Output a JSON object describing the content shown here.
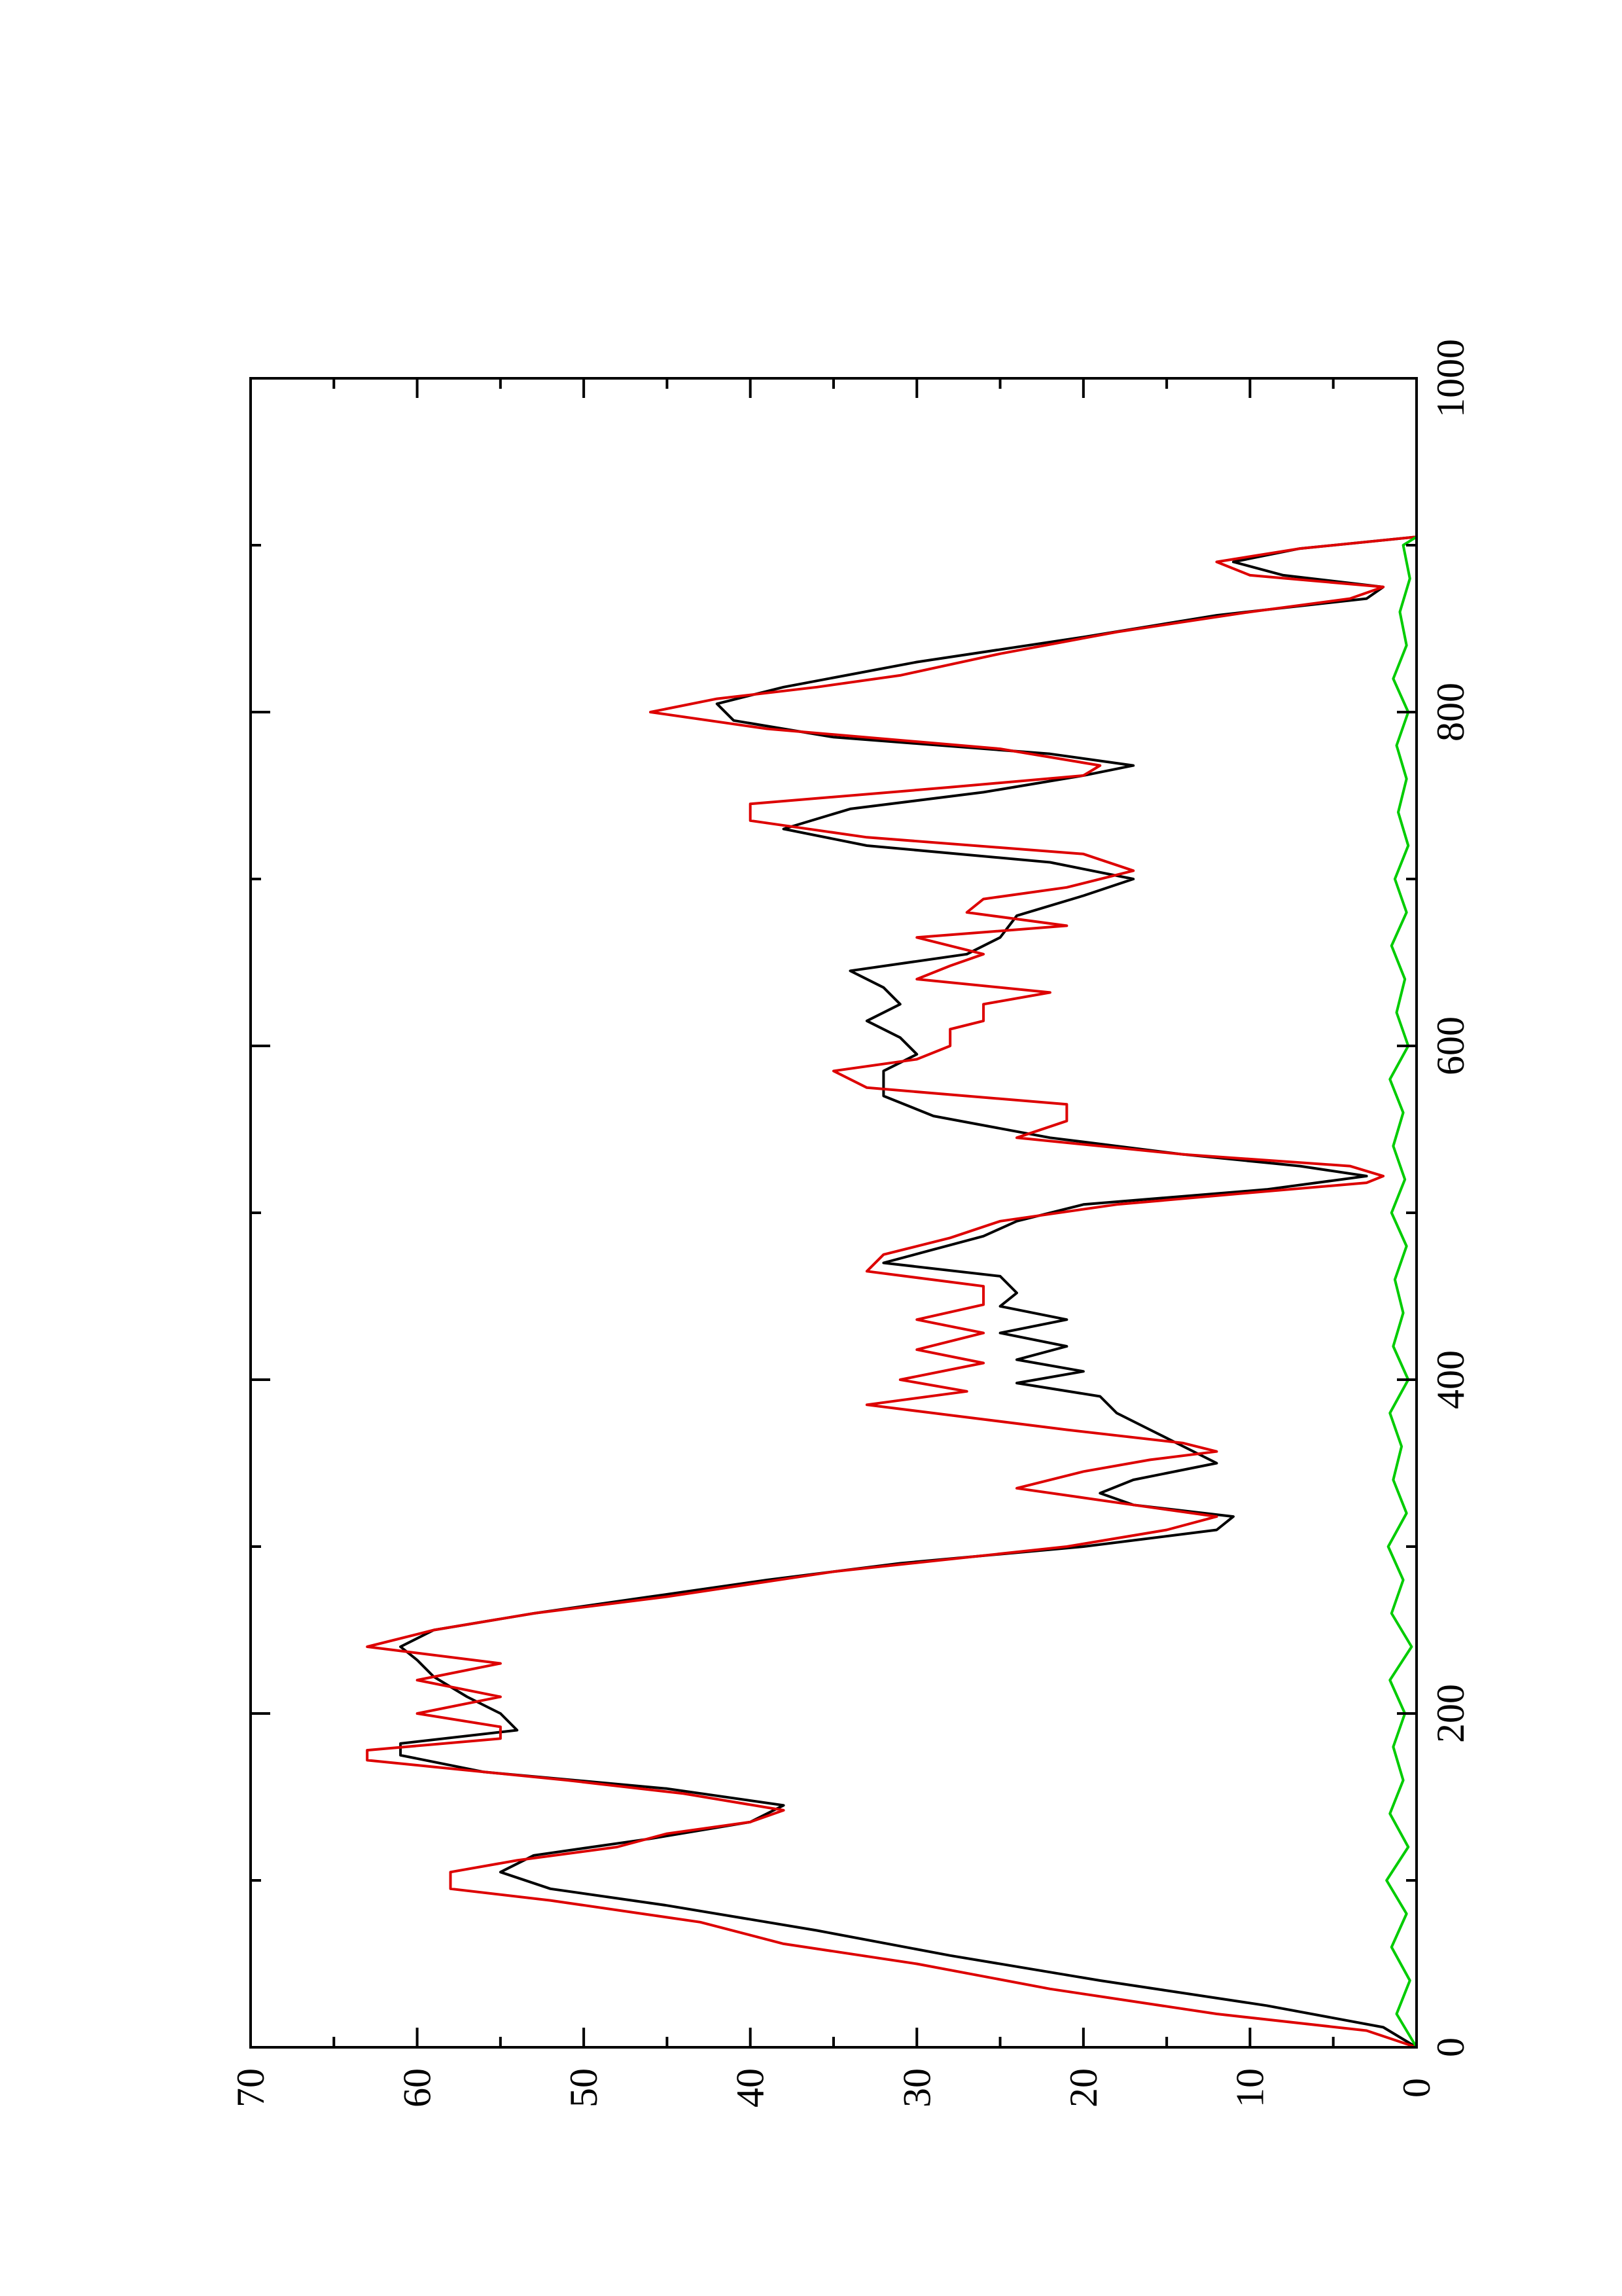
{
  "chart_data": {
    "type": "line",
    "orientation": "rotated-90",
    "title": "",
    "xlabel": "",
    "ylabel": "",
    "xlim": [
      0,
      1000
    ],
    "ylim": [
      0,
      70
    ],
    "x_ticks": [
      0,
      200,
      400,
      600,
      800,
      1000
    ],
    "y_ticks": [
      0,
      10,
      20,
      30,
      40,
      50,
      60,
      70
    ],
    "grid": false,
    "legend": "none",
    "series": [
      {
        "color": "#000000",
        "points": [
          [
            0,
            0
          ],
          [
            12,
            2
          ],
          [
            25,
            9
          ],
          [
            40,
            19
          ],
          [
            55,
            28
          ],
          [
            70,
            36
          ],
          [
            85,
            45
          ],
          [
            95,
            52
          ],
          [
            105,
            55
          ],
          [
            115,
            53
          ],
          [
            125,
            46
          ],
          [
            135,
            40
          ],
          [
            145,
            38
          ],
          [
            155,
            45
          ],
          [
            165,
            56
          ],
          [
            175,
            61
          ],
          [
            182,
            61
          ],
          [
            190,
            54
          ],
          [
            200,
            55
          ],
          [
            210,
            57
          ],
          [
            222,
            59
          ],
          [
            232,
            60
          ],
          [
            240,
            61
          ],
          [
            250,
            59
          ],
          [
            260,
            53
          ],
          [
            270,
            46
          ],
          [
            280,
            39
          ],
          [
            290,
            31
          ],
          [
            300,
            20
          ],
          [
            310,
            12
          ],
          [
            318,
            11
          ],
          [
            325,
            17
          ],
          [
            332,
            19
          ],
          [
            340,
            17
          ],
          [
            350,
            12
          ],
          [
            360,
            14
          ],
          [
            370,
            16
          ],
          [
            380,
            18
          ],
          [
            390,
            19
          ],
          [
            398,
            24
          ],
          [
            405,
            20
          ],
          [
            412,
            24
          ],
          [
            420,
            21
          ],
          [
            428,
            25
          ],
          [
            436,
            21
          ],
          [
            444,
            25
          ],
          [
            452,
            24
          ],
          [
            462,
            25
          ],
          [
            470,
            32
          ],
          [
            478,
            29
          ],
          [
            486,
            26
          ],
          [
            495,
            24
          ],
          [
            505,
            20
          ],
          [
            514,
            9
          ],
          [
            522,
            3
          ],
          [
            528,
            7
          ],
          [
            535,
            14
          ],
          [
            545,
            22
          ],
          [
            558,
            29
          ],
          [
            570,
            32
          ],
          [
            585,
            32
          ],
          [
            595,
            30
          ],
          [
            605,
            31
          ],
          [
            615,
            33
          ],
          [
            625,
            31
          ],
          [
            635,
            32
          ],
          [
            645,
            34
          ],
          [
            655,
            27
          ],
          [
            665,
            25
          ],
          [
            678,
            24
          ],
          [
            690,
            20
          ],
          [
            700,
            17
          ],
          [
            710,
            22
          ],
          [
            720,
            33
          ],
          [
            730,
            38
          ],
          [
            742,
            34
          ],
          [
            752,
            26
          ],
          [
            762,
            20
          ],
          [
            768,
            17
          ],
          [
            775,
            22
          ],
          [
            785,
            35
          ],
          [
            795,
            41
          ],
          [
            805,
            42
          ],
          [
            815,
            38
          ],
          [
            830,
            30
          ],
          [
            845,
            20
          ],
          [
            858,
            12
          ],
          [
            868,
            3
          ],
          [
            875,
            2
          ],
          [
            882,
            8
          ],
          [
            890,
            11
          ],
          [
            898,
            7
          ],
          [
            905,
            0
          ]
        ]
      },
      {
        "color": "#dd0000",
        "points": [
          [
            0,
            0
          ],
          [
            10,
            3
          ],
          [
            20,
            12
          ],
          [
            35,
            22
          ],
          [
            50,
            30
          ],
          [
            62,
            38
          ],
          [
            75,
            43
          ],
          [
            88,
            52
          ],
          [
            95,
            58
          ],
          [
            105,
            58
          ],
          [
            112,
            54
          ],
          [
            120,
            48
          ],
          [
            128,
            45
          ],
          [
            135,
            40
          ],
          [
            142,
            38
          ],
          [
            152,
            44
          ],
          [
            160,
            51
          ],
          [
            168,
            59
          ],
          [
            172,
            63
          ],
          [
            178,
            63
          ],
          [
            185,
            55
          ],
          [
            192,
            55
          ],
          [
            200,
            60
          ],
          [
            210,
            55
          ],
          [
            220,
            60
          ],
          [
            230,
            55
          ],
          [
            240,
            63
          ],
          [
            250,
            59
          ],
          [
            260,
            53
          ],
          [
            270,
            45
          ],
          [
            285,
            35
          ],
          [
            300,
            21
          ],
          [
            310,
            15
          ],
          [
            318,
            12
          ],
          [
            325,
            17
          ],
          [
            335,
            24
          ],
          [
            345,
            20
          ],
          [
            352,
            16
          ],
          [
            357,
            12
          ],
          [
            362,
            14
          ],
          [
            370,
            21
          ],
          [
            385,
            33
          ],
          [
            393,
            27
          ],
          [
            400,
            31
          ],
          [
            410,
            26
          ],
          [
            418,
            30
          ],
          [
            428,
            26
          ],
          [
            436,
            30
          ],
          [
            445,
            26
          ],
          [
            456,
            26
          ],
          [
            465,
            33
          ],
          [
            475,
            32
          ],
          [
            485,
            28
          ],
          [
            495,
            25
          ],
          [
            505,
            18
          ],
          [
            512,
            10
          ],
          [
            518,
            3
          ],
          [
            522,
            2
          ],
          [
            528,
            4
          ],
          [
            535,
            14
          ],
          [
            545,
            24
          ],
          [
            555,
            21
          ],
          [
            565,
            21
          ],
          [
            575,
            33
          ],
          [
            585,
            35
          ],
          [
            592,
            30
          ],
          [
            600,
            28
          ],
          [
            610,
            28
          ],
          [
            615,
            26
          ],
          [
            625,
            26
          ],
          [
            632,
            22
          ],
          [
            640,
            30
          ],
          [
            648,
            28
          ],
          [
            655,
            26
          ],
          [
            665,
            30
          ],
          [
            672,
            21
          ],
          [
            680,
            27
          ],
          [
            688,
            26
          ],
          [
            695,
            21
          ],
          [
            705,
            17
          ],
          [
            715,
            20
          ],
          [
            725,
            33
          ],
          [
            735,
            40
          ],
          [
            745,
            40
          ],
          [
            755,
            28
          ],
          [
            762,
            20
          ],
          [
            768,
            19
          ],
          [
            778,
            25
          ],
          [
            790,
            39
          ],
          [
            800,
            46
          ],
          [
            808,
            42
          ],
          [
            815,
            36
          ],
          [
            822,
            31
          ],
          [
            835,
            25
          ],
          [
            848,
            18
          ],
          [
            860,
            10
          ],
          [
            868,
            4
          ],
          [
            875,
            2
          ],
          [
            882,
            10
          ],
          [
            890,
            12
          ],
          [
            898,
            7
          ],
          [
            905,
            0
          ]
        ]
      },
      {
        "color": "#00cc00",
        "points": [
          [
            0,
            0
          ],
          [
            20,
            1.2
          ],
          [
            40,
            0.4
          ],
          [
            60,
            1.5
          ],
          [
            80,
            0.6
          ],
          [
            100,
            1.8
          ],
          [
            120,
            0.5
          ],
          [
            140,
            1.6
          ],
          [
            160,
            0.8
          ],
          [
            180,
            1.4
          ],
          [
            200,
            0.7
          ],
          [
            220,
            1.6
          ],
          [
            240,
            0.3
          ],
          [
            260,
            1.5
          ],
          [
            280,
            0.8
          ],
          [
            300,
            1.7
          ],
          [
            320,
            0.6
          ],
          [
            340,
            1.4
          ],
          [
            360,
            0.9
          ],
          [
            380,
            1.6
          ],
          [
            400,
            0.5
          ],
          [
            420,
            1.4
          ],
          [
            440,
            0.8
          ],
          [
            460,
            1.3
          ],
          [
            480,
            0.6
          ],
          [
            500,
            1.5
          ],
          [
            520,
            0.7
          ],
          [
            540,
            1.4
          ],
          [
            560,
            0.8
          ],
          [
            580,
            1.6
          ],
          [
            600,
            0.5
          ],
          [
            620,
            1.2
          ],
          [
            640,
            0.7
          ],
          [
            660,
            1.5
          ],
          [
            680,
            0.6
          ],
          [
            700,
            1.3
          ],
          [
            720,
            0.5
          ],
          [
            740,
            1.1
          ],
          [
            760,
            0.6
          ],
          [
            780,
            1.2
          ],
          [
            800,
            0.5
          ],
          [
            820,
            1.4
          ],
          [
            840,
            0.6
          ],
          [
            860,
            1.0
          ],
          [
            880,
            0.4
          ],
          [
            900,
            0.8
          ],
          [
            905,
            0
          ]
        ]
      }
    ]
  }
}
